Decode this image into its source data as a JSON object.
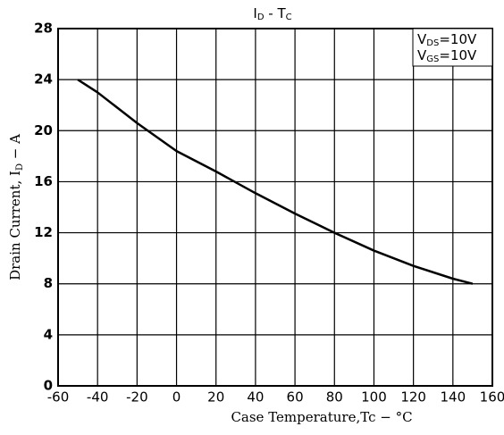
{
  "chart_data": {
    "type": "line",
    "title": [
      "I",
      "D",
      " - T",
      "C"
    ],
    "annotations": [
      [
        "V",
        "DS",
        "=10V"
      ],
      [
        "V",
        "GS",
        "=10V"
      ]
    ],
    "x_label": "Case Temperature,Tc − °C",
    "y_label": [
      "Drain Current, I",
      "D",
      " − A"
    ],
    "x": [
      -50,
      -40,
      -20,
      0,
      20,
      40,
      60,
      80,
      100,
      120,
      140,
      150
    ],
    "values": [
      24,
      23,
      20.6,
      18.4,
      16.8,
      15.1,
      13.5,
      12,
      10.6,
      9.4,
      8.4,
      8
    ],
    "color": "#000000",
    "xlim": [
      -60,
      160
    ],
    "xticks": [
      -60,
      -40,
      -20,
      0,
      20,
      40,
      60,
      80,
      100,
      120,
      140,
      160
    ],
    "ylim": [
      0,
      28
    ],
    "yticks": [
      0,
      4,
      8,
      12,
      16,
      20,
      24,
      28
    ],
    "grid": true
  }
}
